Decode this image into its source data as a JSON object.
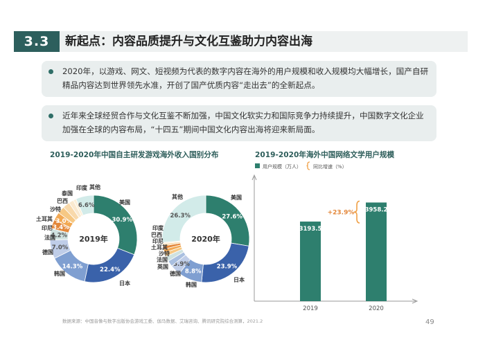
{
  "section": {
    "number": "3.3",
    "title": "新起点：内容品质提升与文化互鉴助力内容出海"
  },
  "bullets": [
    "2020年，以游戏、网文、短视频为代表的数字内容在海外的用户规模和收入规模均大幅增长，国产自研精品内容达到世界领先水准，开创了国产优质内容“走出去”的全新起点。",
    "近年来全球经贸合作与文化互鉴不断加强，中国文化软实力和国际竞争力持续提升，中国数字文化企业加强在全球的内容布局，“十四五”期间中国文化内容出海将迎来新局面。"
  ],
  "colors": {
    "header_dark": "#2d5f5d",
    "accent_green": "#2e7f6e",
    "orange": "#f0a046"
  },
  "chart_data": [
    {
      "type": "pie",
      "title": "2019-2020年中国自主研发游戏海外收入国别分布",
      "center_label": "2019年",
      "slices": [
        {
          "label": "美国",
          "value": 30.9,
          "value_text": "30.9%",
          "color": "#2e7f6e"
        },
        {
          "label": "日本",
          "value": 22.4,
          "value_text": "22.4%",
          "color": "#3a62aa"
        },
        {
          "label": "韩国",
          "value": 14.3,
          "value_text": "14.3%",
          "color": "#7f9fd1"
        },
        {
          "label": "德国",
          "value": 7.0,
          "value_text": "7.0%",
          "color": "#bfcde8"
        },
        {
          "label": "法国",
          "value": 4.2,
          "value_text": "4.2%",
          "color": "#cfe2e0"
        },
        {
          "label": "印尼",
          "value": 3.4,
          "value_text": "3.4%",
          "color": "#e3873a"
        },
        {
          "label": "土耳其",
          "value": 3.0,
          "value_text": "3.0%",
          "color": "#f2a852"
        },
        {
          "label": "沙特",
          "value": 2.7,
          "value_text": "",
          "color": "#f6c884"
        },
        {
          "label": "巴西",
          "value": 2.6,
          "value_text": "",
          "color": "#f8d9ab"
        },
        {
          "label": "泰国",
          "value": 1.8,
          "value_text": "",
          "color": "#fae9cf"
        },
        {
          "label": "印度",
          "value": 1.1,
          "value_text": "",
          "color": "#fbefd8"
        },
        {
          "label": "其他",
          "value": 6.6,
          "value_text": "6.6%",
          "color": "#d2ebe9"
        }
      ]
    },
    {
      "type": "pie",
      "center_label": "2020年",
      "slices": [
        {
          "label": "美国",
          "value": 27.6,
          "value_text": "27.6%",
          "color": "#2e7f6e"
        },
        {
          "label": "日本",
          "value": 23.9,
          "value_text": "23.9%",
          "color": "#3a62aa"
        },
        {
          "label": "韩国",
          "value": 8.8,
          "value_text": "8.8%",
          "color": "#7f9fd1"
        },
        {
          "label": "德国",
          "value": 3.9,
          "value_text": "3.9%",
          "color": "#bfcde8"
        },
        {
          "label": "英国",
          "value": 2.2,
          "value_text": "",
          "color": "#a9bfe0"
        },
        {
          "label": "法国",
          "value": 1.9,
          "value_text": "",
          "color": "#cfe2e0"
        },
        {
          "label": "沙特",
          "value": 1.5,
          "value_text": "",
          "color": "#f6c884"
        },
        {
          "label": "土耳其",
          "value": 1.3,
          "value_text": "",
          "color": "#f2a852"
        },
        {
          "label": "印尼",
          "value": 1.2,
          "value_text": "",
          "color": "#e3873a"
        },
        {
          "label": "巴西",
          "value": 0.8,
          "value_text": "",
          "color": "#f8d9ab"
        },
        {
          "label": "印度",
          "value": 0.5,
          "value_text": "",
          "color": "#fbefd8"
        },
        {
          "label": "其他",
          "value": 26.3,
          "value_text": "26.3%",
          "color": "#d2ebe9"
        }
      ]
    },
    {
      "type": "bar",
      "title": "2019-2020年海外中国网络文学用户规模",
      "legend": [
        {
          "label": "用户规模（万人）",
          "color": "#2e7f6e"
        },
        {
          "label": "同比增速（%）",
          "color": "#f0a046"
        }
      ],
      "categories": [
        "2019",
        "2020"
      ],
      "values": [
        3193.5,
        3958.2
      ],
      "value_labels": [
        "3193.5",
        "3958.2"
      ],
      "growth_label": "+23.9%",
      "ylim": [
        0,
        5000
      ]
    }
  ],
  "footer": {
    "source": "数据来源：中国音像与数字出版协会游戏工委、伽马数据、艾瑞咨询、腾讯研究院综合测算，2021.2",
    "page": "49"
  }
}
